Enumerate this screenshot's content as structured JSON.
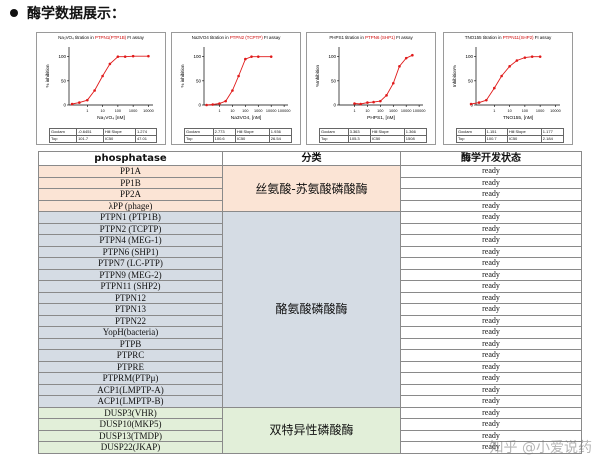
{
  "heading": "酶学数据展示：",
  "charts": [
    {
      "title_pre": "Na₃VO₄ titration in ",
      "title_red": "PTPN1(PTP1B)",
      "title_post": " FI assay",
      "ylabel": "% inhibition",
      "xlabel": "Na₃VO₄ [nM]",
      "yticks": [
        "100",
        "50",
        "0"
      ],
      "xticks": [
        "1",
        "10",
        "100",
        "1000",
        "10000"
      ],
      "table": [
        [
          "Goclam",
          "-0.6451",
          "Hill Slope",
          "1.274"
        ],
        [
          "Top",
          "101.7",
          "IC50",
          "47.01"
        ]
      ]
    },
    {
      "title_pre": "Na3VO4 titration in ",
      "title_red": "PTPN2 (TCPTP)",
      "title_post": " FI assay",
      "ylabel": "% inhibition",
      "xlabel": "Na3VO4, [nM]",
      "yticks": [
        "100",
        "50",
        "0"
      ],
      "xticks": [
        "1",
        "10",
        "100",
        "1000",
        "10000",
        "100000"
      ],
      "table": [
        [
          "Goclam",
          "2.773",
          "Hill Slope",
          "1.936"
        ],
        [
          "Top",
          "100.6",
          "IC50",
          "26.54"
        ]
      ]
    },
    {
      "title_pre": "PHPS1 titration in ",
      "title_red": "PTPN6 (SHP1)",
      "title_post": " FI assay",
      "ylabel": "%Inhibition",
      "xlabel": "PHPS1, [nM]",
      "yticks": [
        "100",
        "50",
        "0"
      ],
      "xticks": [
        "1",
        "10",
        "100",
        "1000",
        "10000",
        "100000"
      ],
      "table": [
        [
          "Goclam",
          "3.363",
          "Hill Slope",
          "1.366"
        ],
        [
          "Top",
          "105.3",
          "IC50",
          "1508"
        ]
      ]
    },
    {
      "title_pre": "TNO155 titration in ",
      "title_red": "PTPN11(SHP2)",
      "title_post": " FI assay",
      "ylabel": "Inhibition%",
      "xlabel": "TNO155, [nM]",
      "yticks": [
        "100",
        "50",
        "0"
      ],
      "xticks": [
        "1",
        "10",
        "100",
        "1000",
        "10000"
      ],
      "table": [
        [
          "Goclam",
          "1.151",
          "Hill Slope",
          "1.177"
        ],
        [
          "Top",
          "100.7",
          "IC50",
          "2.184"
        ]
      ]
    }
  ],
  "table": {
    "headers": [
      "phosphatase",
      "分类",
      "酶学开发状态"
    ],
    "groups": [
      {
        "category": "丝氨酸-苏氨酸磷酸酶",
        "color": "#fbe4d5",
        "items": [
          "PP1A",
          "PP1B",
          "PP2A",
          "λPP (phage)"
        ]
      },
      {
        "category": "酪氨酸磷酸酶",
        "color": "#d5dce4",
        "items": [
          "PTPN1 (PTP1B)",
          "PTPN2 (TCPTP)",
          "PTPN4 (MEG-1)",
          "PTPN6 (SHP1)",
          "PTPN7 (LC-PTP)",
          "PTPN9 (MEG-2)",
          "PTPN11 (SHP2)",
          "PTPN12",
          "PTPN13",
          "PTPN22",
          "YopH(bacteria)",
          "PTPB",
          "PTPRC",
          "PTPRE",
          "PTPRM(PTPμ)",
          "ACP1(LMPTP-A)",
          "ACP1(LMPTP-B)"
        ]
      },
      {
        "category": "双特异性磷酸酶",
        "color": "#e2efd9",
        "items": [
          "DUSP3(VHR)",
          "DUSP10(MKP5)",
          "DUSP13(TMDP)",
          "DUSP22(JKAP)"
        ]
      }
    ],
    "status_value": "ready"
  },
  "chart_data": [
    {
      "type": "scatter",
      "series": [
        {
          "x": [
            0.1,
            0.3,
            1,
            3,
            10,
            30,
            100,
            300,
            1000,
            10000
          ],
          "y": [
            2,
            5,
            10,
            30,
            60,
            85,
            100,
            100,
            101,
            101
          ]
        }
      ]
    },
    {
      "type": "scatter",
      "series": [
        {
          "x": [
            0.1,
            0.3,
            1,
            3,
            10,
            30,
            100,
            300,
            1000,
            10000
          ],
          "y": [
            0,
            1,
            3,
            8,
            30,
            60,
            95,
            100,
            100,
            100
          ]
        }
      ]
    },
    {
      "type": "scatter",
      "series": [
        {
          "x": [
            1,
            3,
            10,
            30,
            100,
            300,
            1000,
            3000,
            10000,
            30000
          ],
          "y": [
            3,
            2,
            5,
            6,
            8,
            20,
            45,
            80,
            97,
            103
          ]
        }
      ]
    },
    {
      "type": "scatter",
      "series": [
        {
          "x": [
            0.03,
            0.1,
            0.3,
            1,
            3,
            10,
            30,
            100,
            300,
            1000
          ],
          "y": [
            2,
            5,
            10,
            35,
            60,
            80,
            92,
            98,
            100,
            100
          ]
        }
      ]
    }
  ],
  "watermark": "知乎 @小爱说药"
}
